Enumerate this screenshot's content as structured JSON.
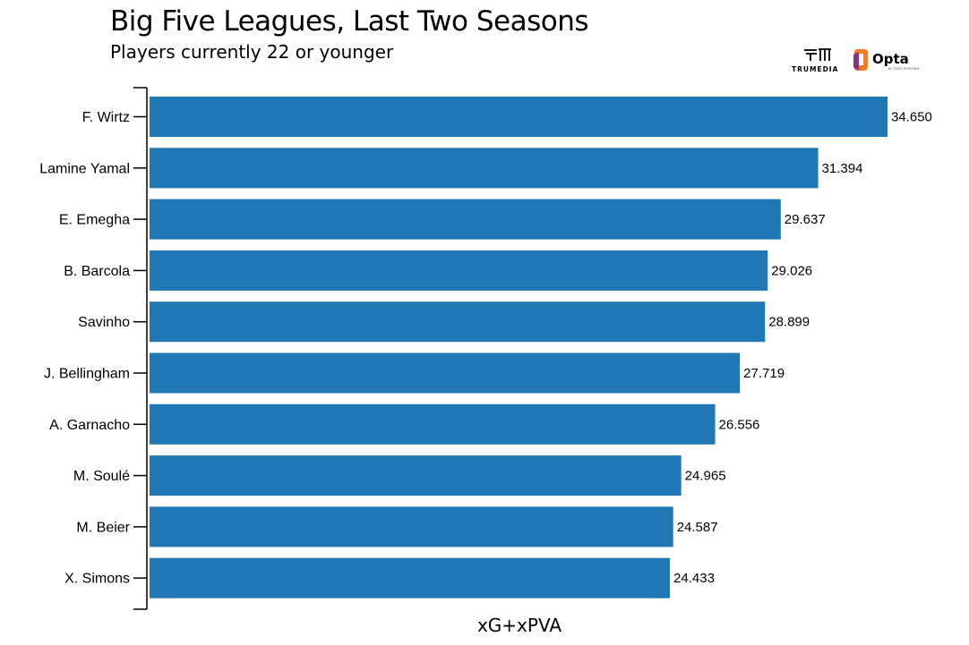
{
  "logos": {
    "trumedia_text": "TRUMEDIA",
    "opta_text": "Opta",
    "opta_sub": "by Stats Perform"
  },
  "colors": {
    "bar": "#1f78b4",
    "axis": "#000000",
    "text": "#000000",
    "trumedia_mark": "#1a1a1a",
    "opta_orange": "#f47b20",
    "opta_purple": "#8b2f8b"
  },
  "chart_data": {
    "type": "bar",
    "orientation": "horizontal",
    "title": "Big Five Leagues, Last Two Seasons",
    "subtitle": "Players currently 22 or younger",
    "xlabel": "xG+xPVA",
    "ylabel": "",
    "xlim": [
      0,
      34.65
    ],
    "grid": false,
    "categories": [
      "F. Wirtz",
      "Lamine Yamal",
      "E. Emegha",
      "B. Barcola",
      "Savinho",
      "J. Bellingham",
      "A. Garnacho",
      "M. Soulé",
      "M. Beier",
      "X. Simons"
    ],
    "values": [
      34.65,
      31.394,
      29.637,
      29.026,
      28.899,
      27.719,
      26.556,
      24.965,
      24.587,
      24.433
    ],
    "value_labels": [
      "34.650",
      "31.394",
      "29.637",
      "29.026",
      "28.899",
      "27.719",
      "26.556",
      "24.965",
      "24.587",
      "24.433"
    ]
  }
}
